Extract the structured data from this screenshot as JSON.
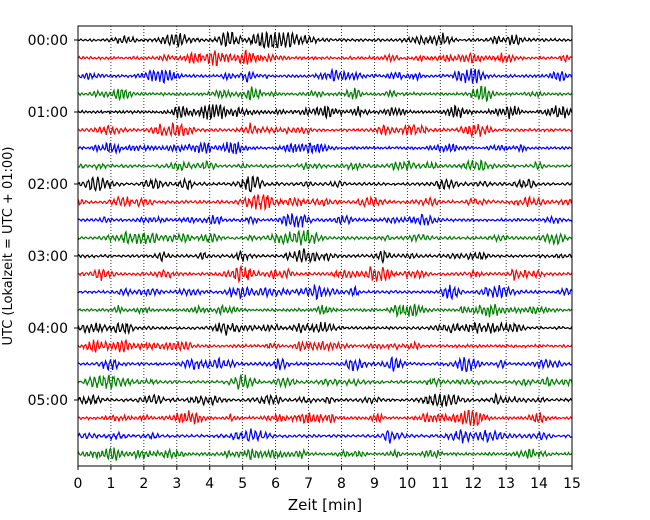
{
  "chart_data": {
    "type": "line",
    "xlabel": "Zeit  [min]",
    "ylabel": "UTC (Lokalzeit = UTC + 01:00)",
    "xlim": [
      0,
      15
    ],
    "x_ticks": [
      "0",
      "1",
      "2",
      "3",
      "4",
      "5",
      "6",
      "7",
      "8",
      "9",
      "10",
      "11",
      "12",
      "13",
      "14",
      "15"
    ],
    "y_ticks": [
      "00:00",
      "01:00",
      "02:00",
      "03:00",
      "04:00",
      "05:00"
    ],
    "grid": "vertical dotted",
    "trace_colors": [
      "#000000",
      "#ff0000",
      "#0000ff",
      "#008000"
    ],
    "traces": [
      {
        "start": "00:00"
      },
      {
        "start": "00:15"
      },
      {
        "start": "00:30"
      },
      {
        "start": "00:45"
      },
      {
        "start": "01:00"
      },
      {
        "start": "01:15"
      },
      {
        "start": "01:30"
      },
      {
        "start": "01:45"
      },
      {
        "start": "02:00"
      },
      {
        "start": "02:15"
      },
      {
        "start": "02:30"
      },
      {
        "start": "02:45"
      },
      {
        "start": "03:00"
      },
      {
        "start": "03:15"
      },
      {
        "start": "03:30"
      },
      {
        "start": "03:45"
      },
      {
        "start": "04:00"
      },
      {
        "start": "04:15"
      },
      {
        "start": "04:30"
      },
      {
        "start": "04:45"
      },
      {
        "start": "05:00"
      },
      {
        "start": "05:15"
      },
      {
        "start": "05:30"
      },
      {
        "start": "05:45"
      }
    ]
  }
}
